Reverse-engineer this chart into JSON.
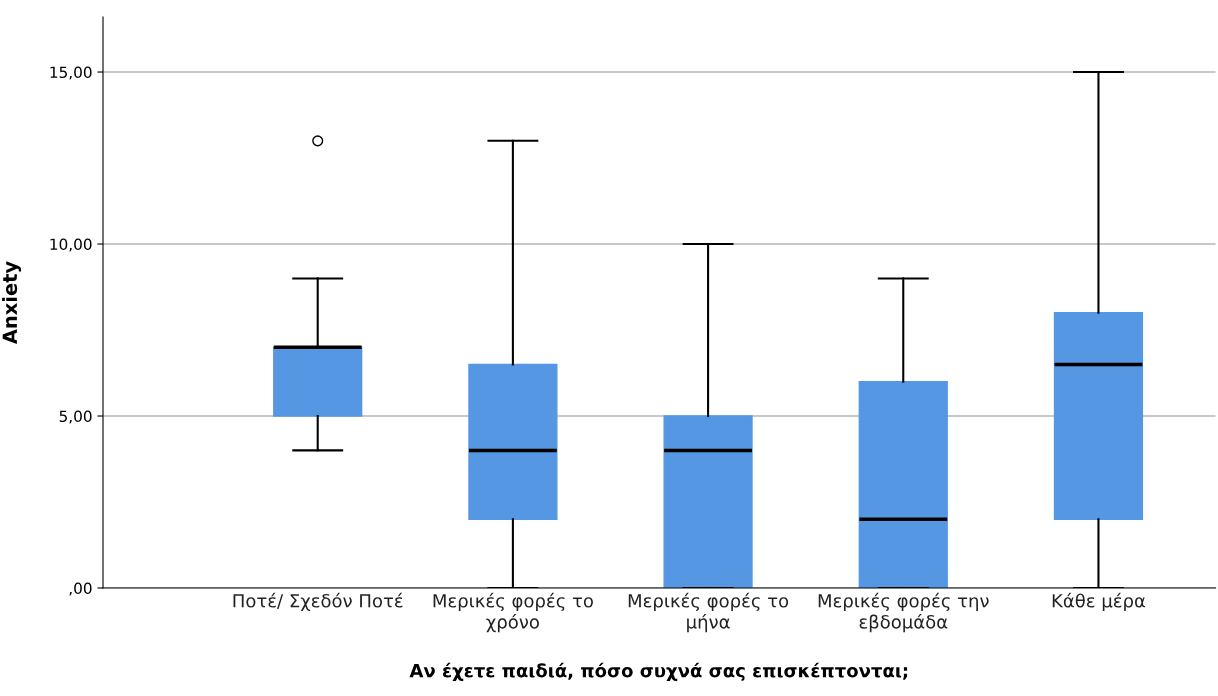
{
  "chart_data": {
    "type": "box",
    "xlabel": "Αν έχετε παιδιά, πόσο συχνά σας επισκέπτονται;",
    "ylabel": "Anxiety",
    "categories": [
      "Ποτέ/ Σχεδόν Ποτέ",
      "Μερικές φορές το\nχρόνο",
      "Μερικές φορές το\nμήνα",
      "Μερικές φορές την\nεβδομάδα",
      "Κάθε μέρα"
    ],
    "series": [
      {
        "color": "#5597e2",
        "boxes": [
          {
            "low": 4,
            "q1": 5,
            "median": 7,
            "q3": 7,
            "high": 9,
            "outliers": [
              13
            ]
          },
          {
            "low": 0,
            "q1": 2,
            "median": 4,
            "q3": 6.5,
            "high": 13
          },
          {
            "low": 0,
            "q1": 0,
            "median": 4,
            "q3": 5,
            "high": 10
          },
          {
            "low": 0,
            "q1": 0,
            "median": 2,
            "q3": 6,
            "high": 9
          },
          {
            "low": 0,
            "q1": 2,
            "median": 6.5,
            "q3": 8,
            "high": 15
          }
        ]
      }
    ],
    "ylim": [
      0,
      16.6
    ],
    "yticks": [
      {
        "value": 0,
        "label": ",00"
      },
      {
        "value": 5,
        "label": "5,00"
      },
      {
        "value": 10,
        "label": "10,00"
      },
      {
        "value": 15,
        "label": "15,00"
      }
    ],
    "grid": "y",
    "legend": false
  }
}
